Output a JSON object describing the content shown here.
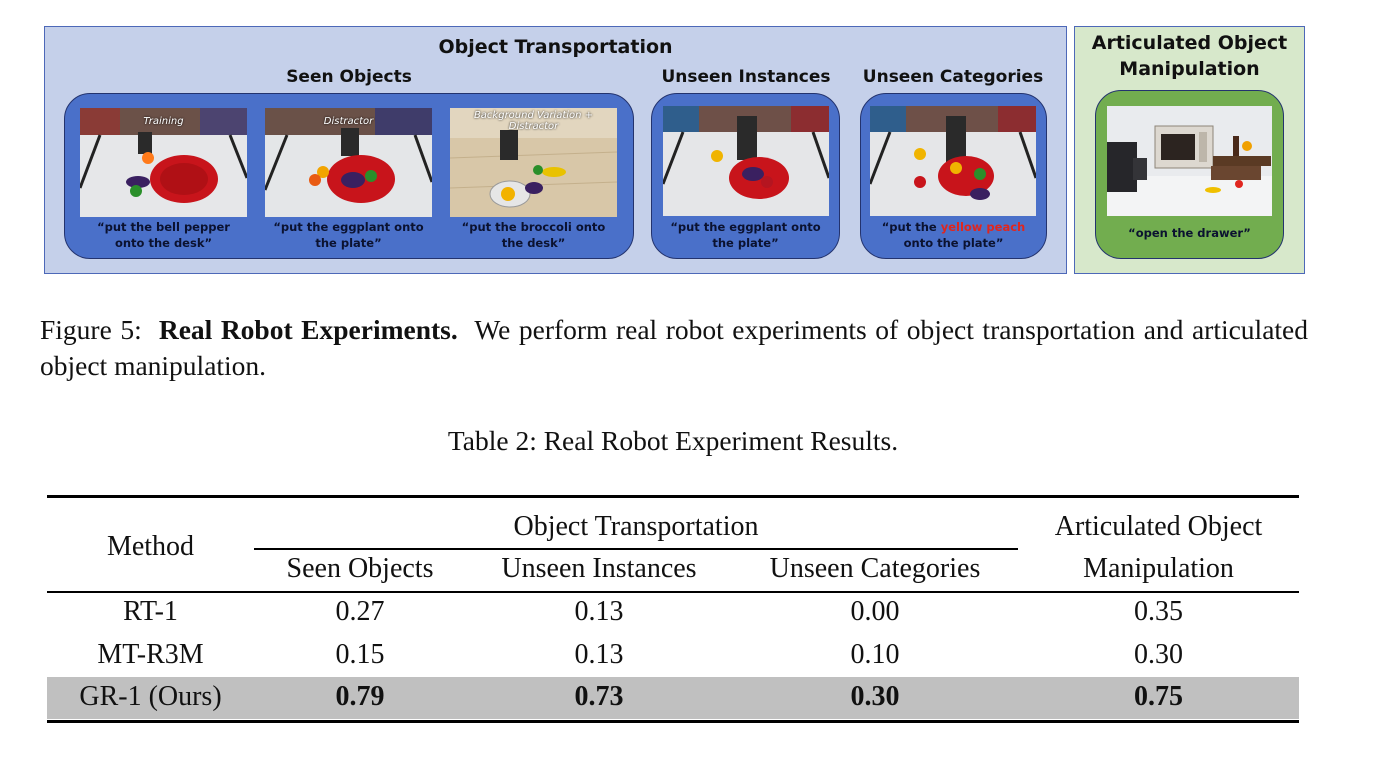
{
  "figure": {
    "transport_title": "Object Transportation",
    "articulated_title_line1": "Articulated Object",
    "articulated_title_line2": "Manipulation",
    "groups": {
      "seen": "Seen Objects",
      "unseen_instances": "Unseen Instances",
      "unseen_categories": "Unseen Categories"
    },
    "panels": {
      "training_tag": "Training",
      "distractor_tag": "Distractor",
      "bg_tag_line1": "Background Variation +",
      "bg_tag_line2": "Distractor",
      "cap_training_1": "“put the bell pepper",
      "cap_training_2": "onto the desk”",
      "cap_distractor_1": "“put the eggplant onto",
      "cap_distractor_2": "the plate”",
      "cap_bg_1": "“put the broccoli onto",
      "cap_bg_2": "the desk”",
      "cap_instances_1": "“put the eggplant onto",
      "cap_instances_2": "the plate”",
      "cap_categories_pre": "“put the ",
      "cap_categories_highlight": "yellow peach",
      "cap_categories_2": "onto the plate”",
      "cap_articulated": "“open the drawer”"
    },
    "highlight_color": "#e0261f"
  },
  "caption": {
    "label": "Figure 5:",
    "bold": "Real Robot Experiments.",
    "text": "We perform real robot experiments of object transportation and articulated object manipulation."
  },
  "table": {
    "caption": "Table 2: Real Robot Experiment Results.",
    "header": {
      "method": "Method",
      "group": "Object Transportation",
      "col1": "Seen Objects",
      "col2": "Unseen Instances",
      "col3": "Unseen Categories",
      "col4_line1": "Articulated Object",
      "col4_line2": "Manipulation"
    },
    "rows": [
      {
        "method": "RT-1",
        "seen": "0.27",
        "unseen_instances": "0.13",
        "unseen_categories": "0.00",
        "articulated": "0.35"
      },
      {
        "method": "MT-R3M",
        "seen": "0.15",
        "unseen_instances": "0.13",
        "unseen_categories": "0.10",
        "articulated": "0.30"
      },
      {
        "method": "GR-1 (Ours)",
        "seen": "0.79",
        "unseen_instances": "0.73",
        "unseen_categories": "0.30",
        "articulated": "0.75"
      }
    ]
  }
}
